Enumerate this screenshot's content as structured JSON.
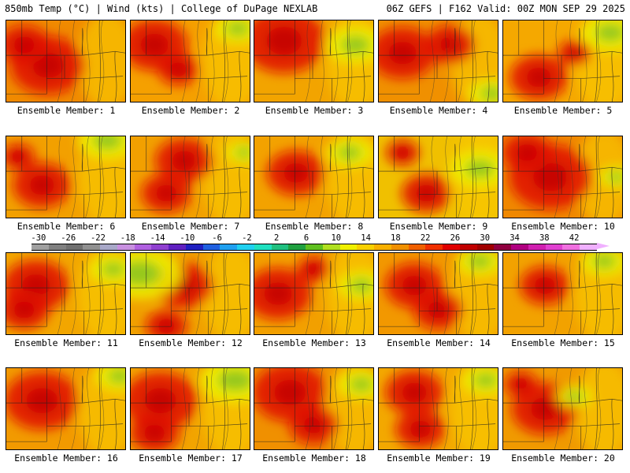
{
  "header": {
    "left": "850mb Temp (°C) | Wind (kts) | College of DuPage NEXLAB",
    "right": "06Z GEFS | F162 Valid: 00Z MON SEP 29 2025"
  },
  "colorbar": {
    "labels": [
      "-30",
      "-26",
      "-22",
      "-18",
      "-14",
      "-10",
      "-6",
      "-2",
      "2",
      "6",
      "10",
      "14",
      "18",
      "22",
      "26",
      "30",
      "34",
      "38",
      "42"
    ],
    "colors": [
      "#ffffff",
      "#a0a0a0",
      "#808080",
      "#707070",
      "#909090",
      "#a8a8c8",
      "#c890e0",
      "#b060e0",
      "#9040d0",
      "#6020c0",
      "#2020c0",
      "#2060e0",
      "#20a0f0",
      "#20d0f0",
      "#20e0c0",
      "#20c080",
      "#20a040",
      "#60c020",
      "#b0e020",
      "#f0f000",
      "#f8d000",
      "#f8b000",
      "#f09000",
      "#f06000",
      "#f03000",
      "#e00000",
      "#c00000",
      "#a00000",
      "#900040",
      "#b00080",
      "#d020b0",
      "#e040d0",
      "#f070e0",
      "#f0b0ff"
    ]
  },
  "panels": [
    {
      "label": "Ensemble Member: 1",
      "base": "#f08a00",
      "hot": [
        [
          0.35,
          0.55,
          0.45
        ],
        [
          0.15,
          0.3,
          0.3
        ]
      ],
      "cool": []
    },
    {
      "label": "Ensemble Member: 2",
      "base": "#f5a000",
      "hot": [
        [
          0.2,
          0.3,
          0.4
        ],
        [
          0.4,
          0.6,
          0.25
        ]
      ],
      "cool": [
        [
          0.9,
          0.1,
          0.2
        ]
      ]
    },
    {
      "label": "Ensemble Member: 3",
      "base": "#f2a400",
      "hot": [
        [
          0.25,
          0.25,
          0.5
        ]
      ],
      "cool": [
        [
          0.85,
          0.3,
          0.25
        ]
      ]
    },
    {
      "label": "Ensemble Member: 4",
      "base": "#f09000",
      "hot": [
        [
          0.2,
          0.4,
          0.4
        ],
        [
          0.6,
          0.3,
          0.3
        ]
      ],
      "cool": [
        [
          0.95,
          0.9,
          0.2
        ]
      ]
    },
    {
      "label": "Ensemble Member: 5",
      "base": "#f5a800",
      "hot": [
        [
          0.3,
          0.7,
          0.35
        ],
        [
          0.6,
          0.4,
          0.2
        ]
      ],
      "cool": [
        [
          0.9,
          0.15,
          0.25
        ]
      ]
    },
    {
      "label": "Ensemble Member: 6",
      "base": "#f2a000",
      "hot": [
        [
          0.3,
          0.6,
          0.35
        ],
        [
          0.1,
          0.25,
          0.2
        ]
      ],
      "cool": [
        [
          0.85,
          0.05,
          0.25
        ]
      ]
    },
    {
      "label": "Ensemble Member: 7",
      "base": "#f2a000",
      "hot": [
        [
          0.45,
          0.3,
          0.35
        ],
        [
          0.3,
          0.7,
          0.3
        ]
      ],
      "cool": [
        [
          0.95,
          0.2,
          0.15
        ]
      ]
    },
    {
      "label": "Ensemble Member: 8",
      "base": "#f3a200",
      "hot": [
        [
          0.35,
          0.45,
          0.35
        ]
      ],
      "cool": [
        [
          0.8,
          0.2,
          0.2
        ]
      ]
    },
    {
      "label": "Ensemble Member: 9",
      "base": "#f0c000",
      "hot": [
        [
          0.4,
          0.7,
          0.3
        ],
        [
          0.2,
          0.2,
          0.2
        ]
      ],
      "cool": [
        [
          0.85,
          0.4,
          0.25
        ]
      ]
    },
    {
      "label": "Ensemble Member: 10",
      "base": "#f08800",
      "hot": [
        [
          0.4,
          0.5,
          0.5
        ],
        [
          0.2,
          0.2,
          0.3
        ]
      ],
      "cool": [
        [
          0.95,
          0.5,
          0.15
        ]
      ]
    },
    {
      "label": "Ensemble Member: 11",
      "base": "#f2a600",
      "hot": [
        [
          0.25,
          0.4,
          0.4
        ],
        [
          0.15,
          0.7,
          0.3
        ]
      ],
      "cool": [
        [
          0.9,
          0.2,
          0.2
        ]
      ]
    },
    {
      "label": "Ensemble Member: 12",
      "base": "#f0a000",
      "hot": [
        [
          0.45,
          0.4,
          0.35
        ],
        [
          0.3,
          0.9,
          0.25
        ]
      ],
      "cool": [
        [
          0.08,
          0.25,
          0.35
        ]
      ]
    },
    {
      "label": "Ensemble Member: 13",
      "base": "#f2a000",
      "hot": [
        [
          0.2,
          0.5,
          0.4
        ],
        [
          0.5,
          0.2,
          0.2
        ]
      ],
      "cool": [
        [
          0.9,
          0.4,
          0.2
        ]
      ]
    },
    {
      "label": "Ensemble Member: 14",
      "base": "#f29800",
      "hot": [
        [
          0.3,
          0.4,
          0.35
        ],
        [
          0.5,
          0.7,
          0.3
        ]
      ],
      "cool": [
        [
          0.85,
          0.1,
          0.2
        ]
      ]
    },
    {
      "label": "Ensemble Member: 15",
      "base": "#f2a200",
      "hot": [
        [
          0.35,
          0.4,
          0.3
        ]
      ],
      "cool": [
        [
          0.85,
          0.1,
          0.2
        ]
      ]
    },
    {
      "label": "Ensemble Member: 16",
      "base": "#f29a00",
      "hot": [
        [
          0.3,
          0.4,
          0.45
        ]
      ],
      "cool": [
        [
          0.95,
          0.1,
          0.2
        ]
      ]
    },
    {
      "label": "Ensemble Member: 17",
      "base": "#f2a400",
      "hot": [
        [
          0.25,
          0.4,
          0.45
        ],
        [
          0.2,
          0.8,
          0.3
        ]
      ],
      "cool": [
        [
          0.88,
          0.15,
          0.3
        ]
      ]
    },
    {
      "label": "Ensemble Member: 18",
      "base": "#f09000",
      "hot": [
        [
          0.3,
          0.3,
          0.45
        ],
        [
          0.5,
          0.7,
          0.3
        ]
      ],
      "cool": [
        [
          0.9,
          0.2,
          0.2
        ]
      ]
    },
    {
      "label": "Ensemble Member: 19",
      "base": "#f3a800",
      "hot": [
        [
          0.3,
          0.3,
          0.35
        ],
        [
          0.35,
          0.75,
          0.3
        ]
      ],
      "cool": [
        [
          0.9,
          0.15,
          0.2
        ]
      ]
    },
    {
      "label": "Ensemble Member: 20",
      "base": "#f09a00",
      "hot": [
        [
          0.35,
          0.5,
          0.4
        ],
        [
          0.15,
          0.2,
          0.2
        ]
      ],
      "cool": [
        [
          0.6,
          0.35,
          0.15
        ]
      ]
    }
  ]
}
